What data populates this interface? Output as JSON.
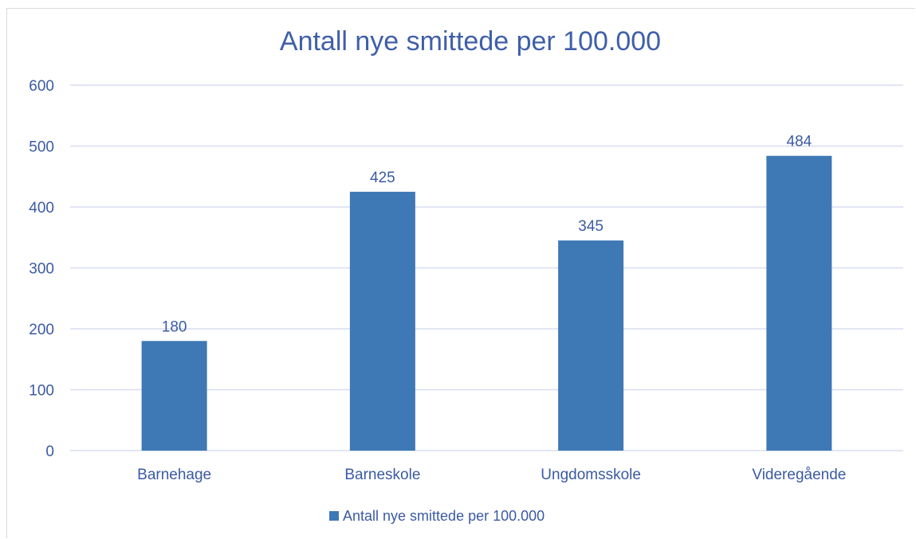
{
  "chart_data": {
    "type": "bar",
    "title": "Antall nye smittede per 100.000",
    "categories": [
      "Barnehage",
      "Barneskole",
      "Ungdomsskole",
      "Videregående"
    ],
    "series": [
      {
        "name": "Antall nye smittede per 100.000",
        "values": [
          180,
          425,
          345,
          484
        ],
        "color": "#3e78b5"
      }
    ],
    "ylim": [
      0,
      600
    ],
    "yticks": [
      "0",
      "100",
      "200",
      "300",
      "400",
      "500",
      "600"
    ],
    "data_labels": [
      "180",
      "425",
      "345",
      "484"
    ],
    "grid": true,
    "legend_position": "bottom",
    "colors": {
      "text": "#3b5aa3",
      "title": "#3f5fa8",
      "grid": "#d9def0",
      "bar": "#3e78b5"
    }
  }
}
